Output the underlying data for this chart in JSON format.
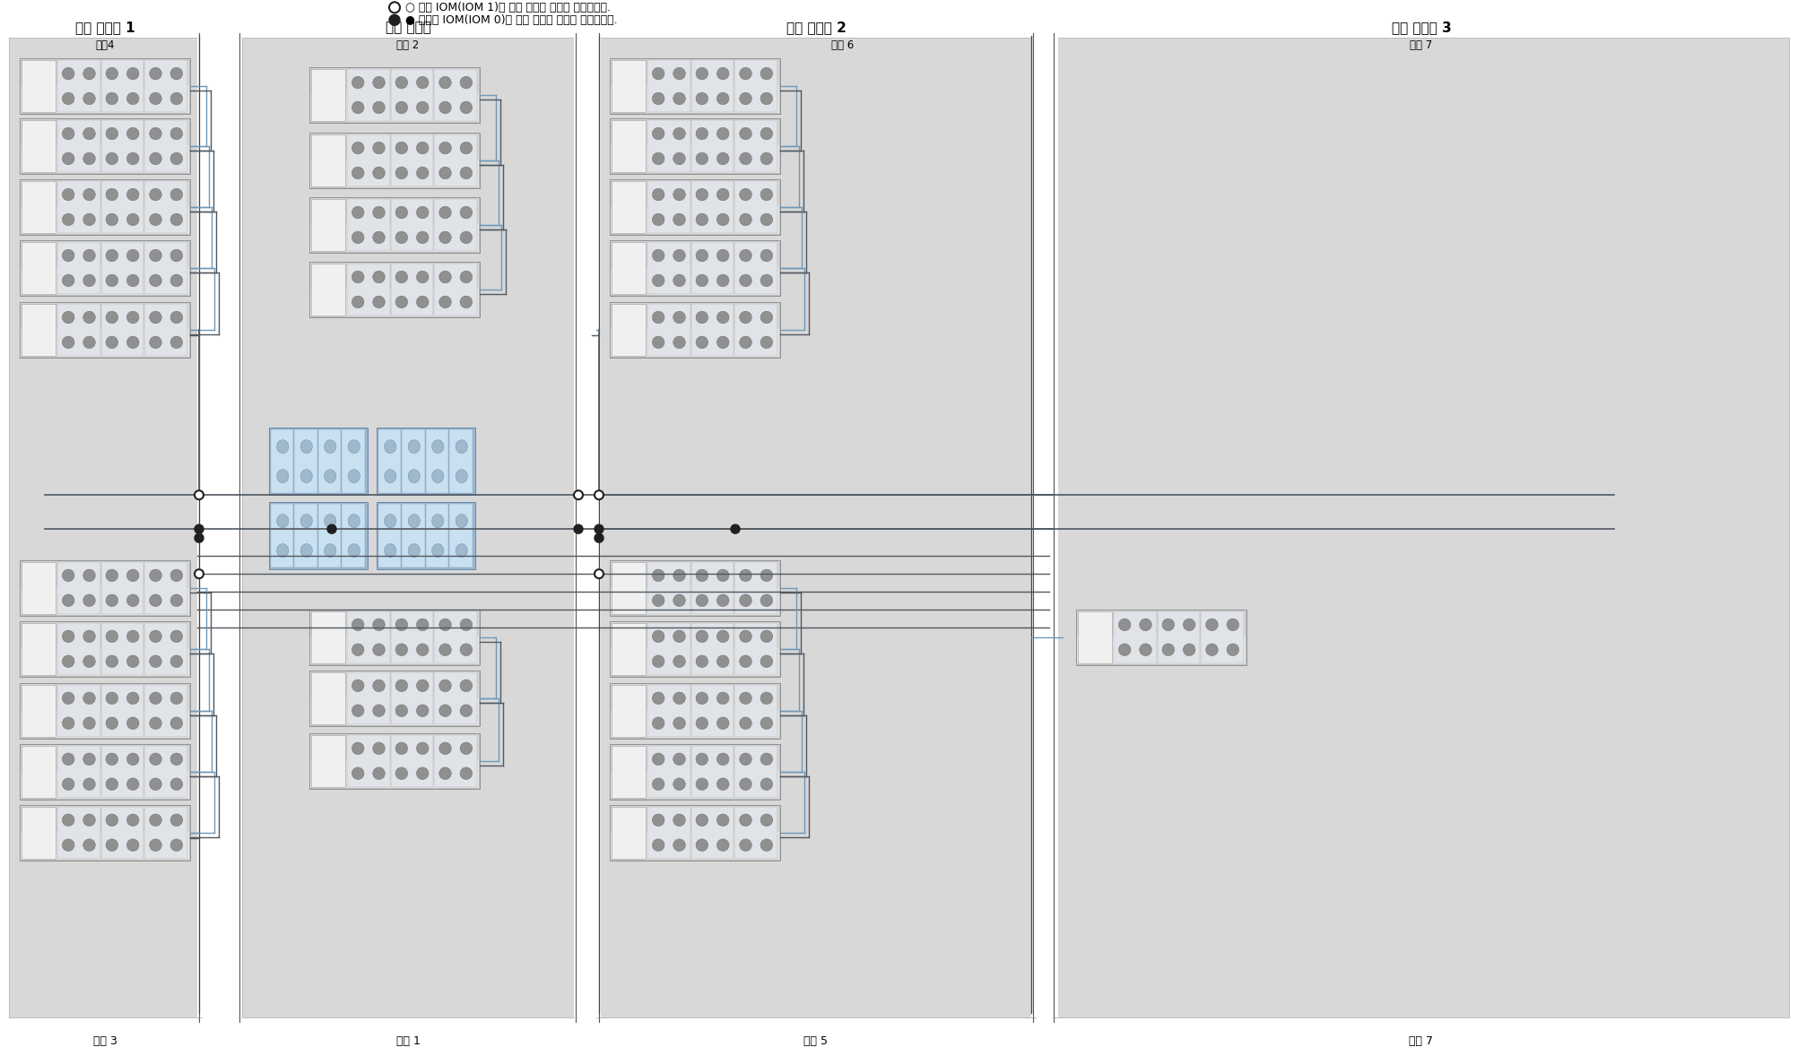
{
  "legend_line1": "○ 위쪽 IOM(IOM 1)에 대한 케이블 연결을 나타냅니다.",
  "legend_line2": "● 아래쪽 IOM(IOM 0)에 대한 케이블 연결을 나타냅니다.",
  "cab1_label": "확장 캐비넻 1",
  "cab1_chain": "체인4",
  "cab2_label": "기본 캐비넻",
  "cab2_chain": "체인 2",
  "cab3_label": "확장 캐비넻 2",
  "cab3_chain": "체인 6",
  "cab4_label": "확장 캐비넻 3",
  "cab4_chain": "체인 7",
  "bottom_chain3": "체인 3",
  "bottom_chain1": "체인 1",
  "bottom_chain5": "체인 5",
  "bottom_chain7": "체인 7",
  "cab_bg": "#d8d8d8",
  "white_gap": "#ffffff",
  "shelf_outer": "#c8c8c8",
  "shelf_left_panel": "#f0f0f0",
  "shelf_right_panel": "#d4d4d4",
  "shelf_port_color": "#a0a0a0",
  "ctrl_bg": "#b8d0e8",
  "ctrl_inner": "#d0e8f8",
  "line_dark": "#505860",
  "line_blue": "#7098b8",
  "dot_open": "#ffffff",
  "dot_fill": "#202020",
  "figw": 20.15,
  "figh": 11.78
}
